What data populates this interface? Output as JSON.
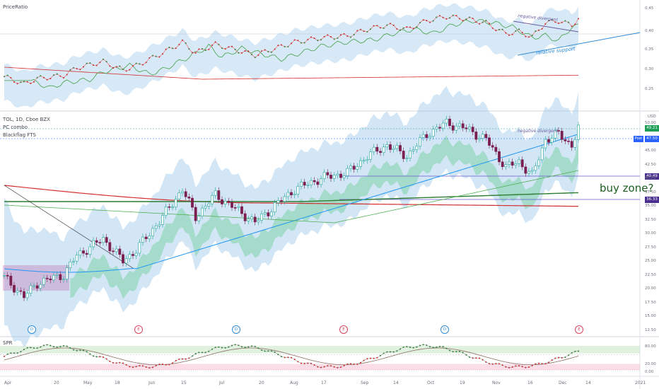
{
  "top_pane": {
    "title": "PriceRatio",
    "axis": [
      "0.45",
      "0.40",
      "0.35",
      "0.30",
      "0.25"
    ],
    "annotations": {
      "neg_div": "negative divergent",
      "support": "relative support"
    }
  },
  "main_pane": {
    "symbol": "TOL, 1D, Cboe BZX",
    "indicator1": "PC combo",
    "indicator2": "Blackflag FTS",
    "currency": "USD",
    "axis": [
      "50.00",
      "47.50",
      "45.00",
      "42.50",
      "40.00",
      "37.50",
      "35.00",
      "32.50",
      "30.00",
      "27.50",
      "25.00",
      "22.50",
      "20.00",
      "17.50",
      "15.00",
      "12.50"
    ],
    "tags": [
      {
        "label": "49.21",
        "color": "#1e9e57"
      },
      {
        "label": "47.50",
        "color": "#2962ff"
      },
      {
        "label": "40.49",
        "color": "#4a2f8f"
      },
      {
        "label": "36.33",
        "color": "#4a2f8f"
      }
    ],
    "post_label": "Post",
    "annotation_neg_div": "negative divergent",
    "buy_zone": "buy zone?",
    "earnings": [
      {
        "label": "D",
        "color": "#2e8bd6"
      },
      {
        "label": "E",
        "color": "#d6455d"
      },
      {
        "label": "D",
        "color": "#2e8bd6"
      },
      {
        "label": "E",
        "color": "#d6455d"
      },
      {
        "label": "D",
        "color": "#2e8bd6"
      },
      {
        "label": "E",
        "color": "#d6455d"
      }
    ]
  },
  "bottom_pane": {
    "title": "SPR",
    "axis": [
      "80.00",
      "20.00",
      "0.00"
    ]
  },
  "time_axis": [
    "Apr",
    "20",
    "May",
    "18",
    "Jun",
    "15",
    "Jul",
    "20",
    "Aug",
    "17",
    "Sep",
    "14",
    "Oct",
    "19",
    "Nov",
    "16",
    "Dec",
    "14",
    "2021"
  ],
  "colors": {
    "up": "#26a69a",
    "down": "#7b1f4f",
    "cloud": "#9cc7ec",
    "green_band": "#6fcf97",
    "ma_red": "#d32f2f",
    "ma_green": "#2e7d32",
    "ma_blue": "#2196f3"
  }
}
